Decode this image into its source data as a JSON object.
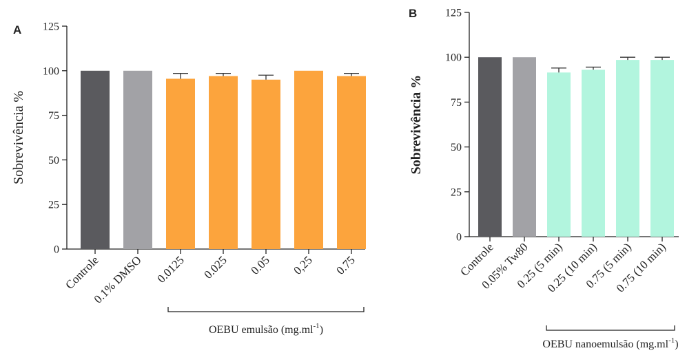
{
  "chart_data": [
    {
      "panel": "A",
      "type": "bar",
      "ylabel": "Sobrevivência %",
      "ylim": [
        0,
        125
      ],
      "yticks": [
        "0",
        "25",
        "50",
        "75",
        "100",
        "125"
      ],
      "categories": [
        "Controle",
        "0.1% DMSO",
        "0.0125",
        "0.025",
        "0.05",
        "0,25",
        "0.75"
      ],
      "values": [
        100,
        100,
        95.5,
        97,
        95,
        100,
        97
      ],
      "errors": [
        0,
        0,
        3,
        1.5,
        2.5,
        0,
        1.5
      ],
      "colors": [
        "#5a5a5e",
        "#a2a2a6",
        "#fca43d",
        "#fca43d",
        "#fca43d",
        "#fca43d",
        "#fca43d"
      ],
      "group": {
        "label": "OEBU emulsão (mg.ml",
        "sup": "-1",
        "close": ")",
        "from": 2,
        "to": 6
      }
    },
    {
      "panel": "B",
      "type": "bar",
      "ylabel": "Sobrevivência %",
      "ylim": [
        0,
        125
      ],
      "yticks": [
        "0",
        "25",
        "50",
        "75",
        "100",
        "125"
      ],
      "categories": [
        "Controle",
        "0.05% Tw80",
        "0.25 (5 min)",
        "0.25 (10 min)",
        "0.75 (5 min)",
        "0.75 (10 min)"
      ],
      "values": [
        100,
        100,
        91.5,
        93,
        98.5,
        98.5
      ],
      "errors": [
        0,
        0,
        2.5,
        1.5,
        1.5,
        1.5
      ],
      "colors": [
        "#5a5a5e",
        "#a2a2a6",
        "#b2f5de",
        "#b2f5de",
        "#b2f5de",
        "#b2f5de"
      ],
      "group": {
        "label": "OEBU nanoemulsão (mg.ml",
        "sup": "-1",
        "close": ")",
        "from": 2,
        "to": 5
      }
    }
  ]
}
